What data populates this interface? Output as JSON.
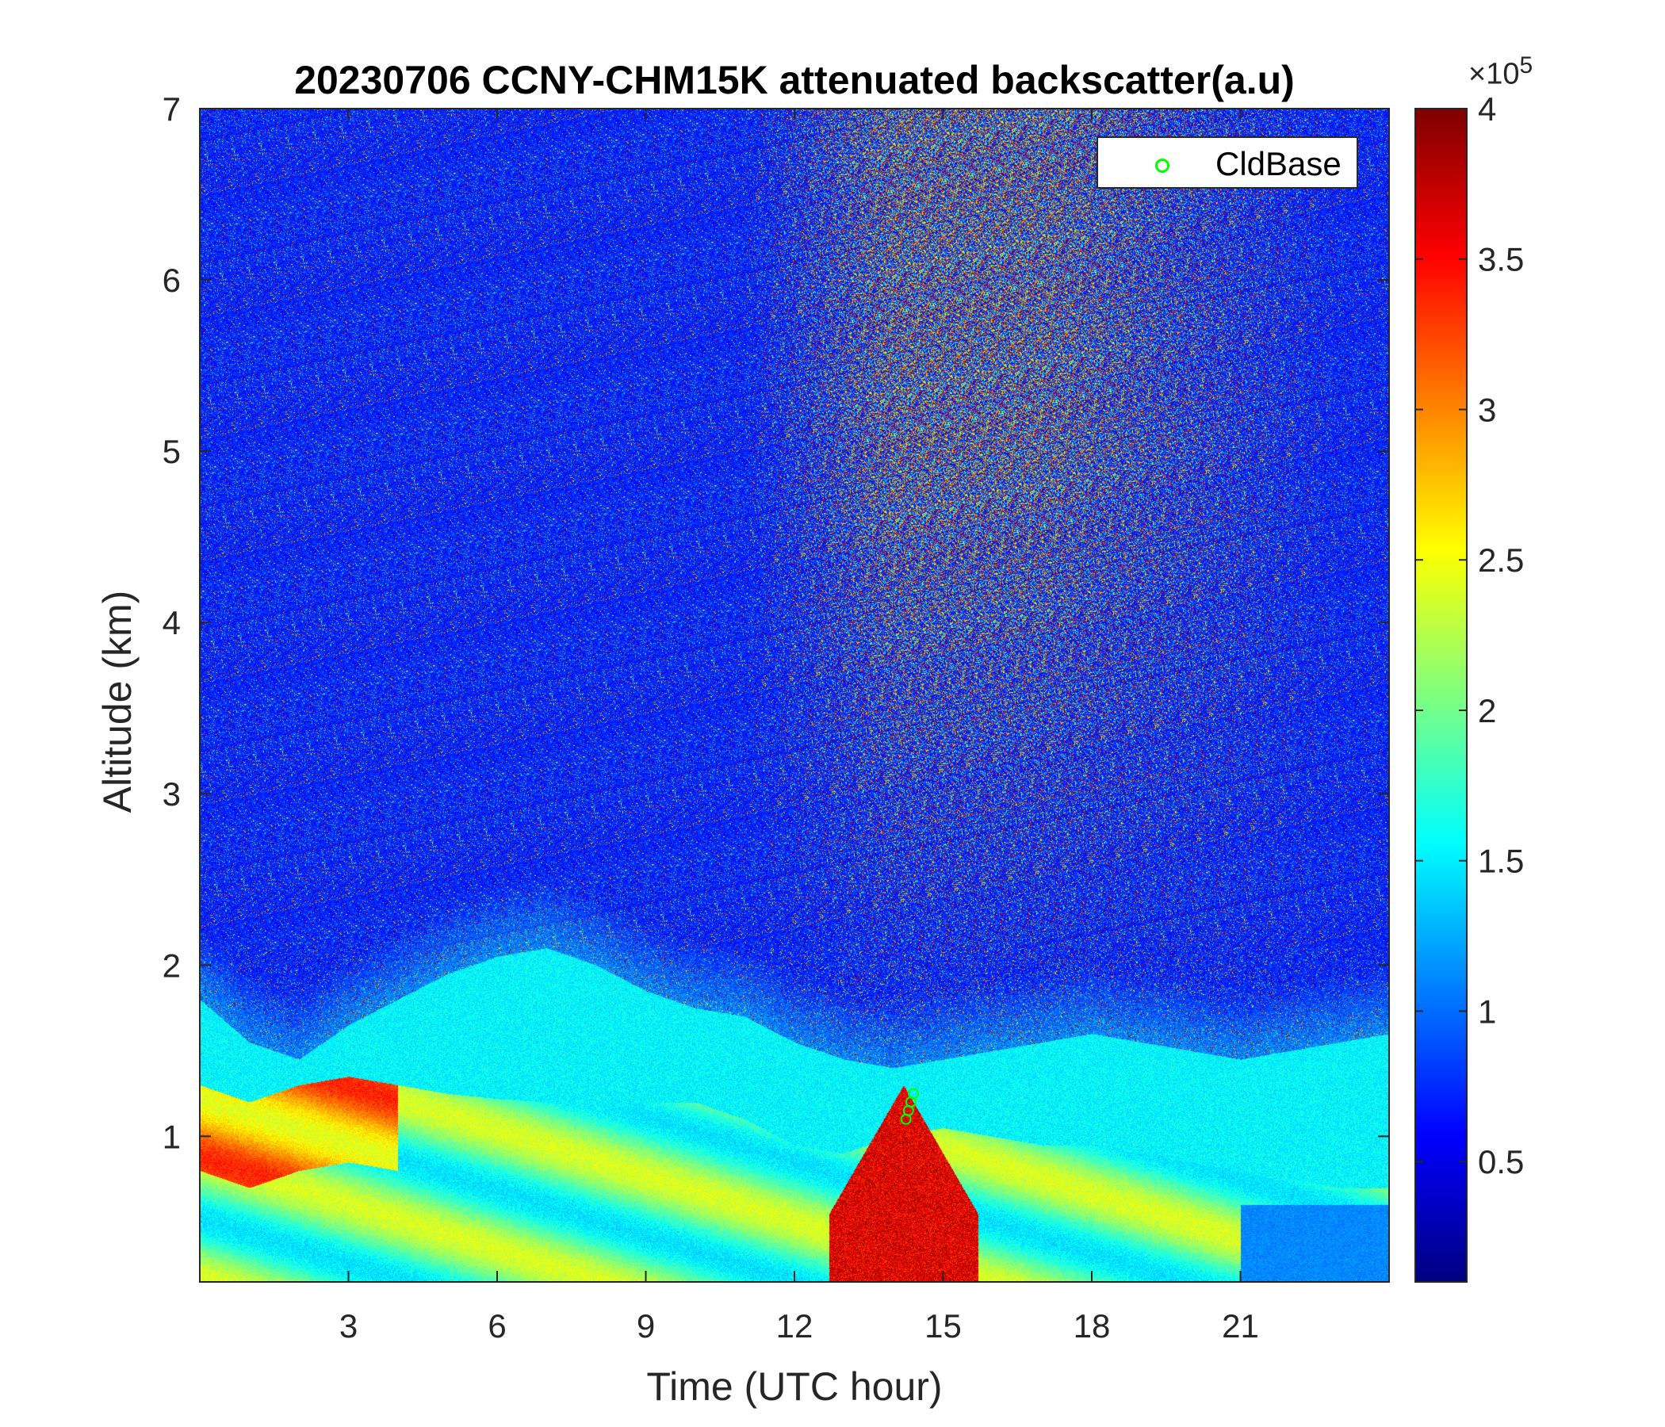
{
  "chart_data": {
    "type": "heatmap",
    "title": "20230706 CCNY-CHM15K attenuated backscatter(a.u)",
    "xlabel": "Time (UTC hour)",
    "ylabel": "Altitude (km)",
    "xlim": [
      0,
      24
    ],
    "ylim": [
      0.15,
      7
    ],
    "xticks": [
      3,
      6,
      9,
      12,
      15,
      18,
      21
    ],
    "xtick_labels": [
      "3",
      "6",
      "9",
      "12",
      "15",
      "18",
      "21"
    ],
    "yticks": [
      1,
      2,
      3,
      4,
      5,
      6,
      7
    ],
    "ytick_labels": [
      "1",
      "2",
      "3",
      "4",
      "5",
      "6",
      "7"
    ],
    "colormap": "jet",
    "colorbar": {
      "clim": [
        10000,
        400000
      ],
      "ticks": [
        50000,
        100000,
        150000,
        200000,
        250000,
        300000,
        350000,
        400000
      ],
      "tick_labels": [
        "0.5",
        "1",
        "1.5",
        "2",
        "2.5",
        "3",
        "3.5",
        "4"
      ],
      "exponent_prefix": "×10",
      "exponent": "5"
    },
    "legend": {
      "entries": [
        "CldBase"
      ],
      "placement": "top-right",
      "marker": "circle",
      "color": "#00ff00"
    },
    "features": {
      "boundary_layer_top_km": [
        [
          0,
          1.8
        ],
        [
          1,
          1.55
        ],
        [
          2,
          1.45
        ],
        [
          3,
          1.65
        ],
        [
          4,
          1.8
        ],
        [
          5,
          1.95
        ],
        [
          6,
          2.05
        ],
        [
          7,
          2.1
        ],
        [
          8,
          2.0
        ],
        [
          9,
          1.85
        ],
        [
          10,
          1.75
        ],
        [
          11,
          1.7
        ],
        [
          12,
          1.55
        ],
        [
          13,
          1.45
        ],
        [
          14,
          1.4
        ],
        [
          15,
          1.45
        ],
        [
          16,
          1.5
        ],
        [
          17,
          1.55
        ],
        [
          18,
          1.6
        ],
        [
          19,
          1.55
        ],
        [
          20,
          1.5
        ],
        [
          21,
          1.45
        ],
        [
          22,
          1.5
        ],
        [
          23,
          1.55
        ],
        [
          24,
          1.6
        ]
      ],
      "aerosol_layer_top_km": [
        [
          0,
          1.3
        ],
        [
          1,
          1.2
        ],
        [
          2,
          1.3
        ],
        [
          3,
          1.35
        ],
        [
          4,
          1.3
        ],
        [
          5,
          1.25
        ],
        [
          6,
          1.22
        ],
        [
          7,
          1.2
        ],
        [
          8,
          1.15
        ],
        [
          9,
          1.2
        ],
        [
          10,
          1.2
        ],
        [
          11,
          1.1
        ],
        [
          12,
          0.95
        ],
        [
          13,
          0.9
        ],
        [
          14,
          1.0
        ],
        [
          15,
          1.05
        ],
        [
          16,
          1.0
        ],
        [
          17,
          0.95
        ],
        [
          18,
          0.95
        ],
        [
          19,
          0.9
        ],
        [
          20,
          0.85
        ],
        [
          21,
          0.8
        ],
        [
          22,
          0.75
        ],
        [
          23,
          0.7
        ],
        [
          24,
          0.7
        ]
      ],
      "cloud_base_points": [
        {
          "time": 14.25,
          "altitude": 1.1
        },
        {
          "time": 14.3,
          "altitude": 1.15
        },
        {
          "time": 14.35,
          "altitude": 1.2
        },
        {
          "time": 14.4,
          "altitude": 1.25
        }
      ]
    }
  }
}
